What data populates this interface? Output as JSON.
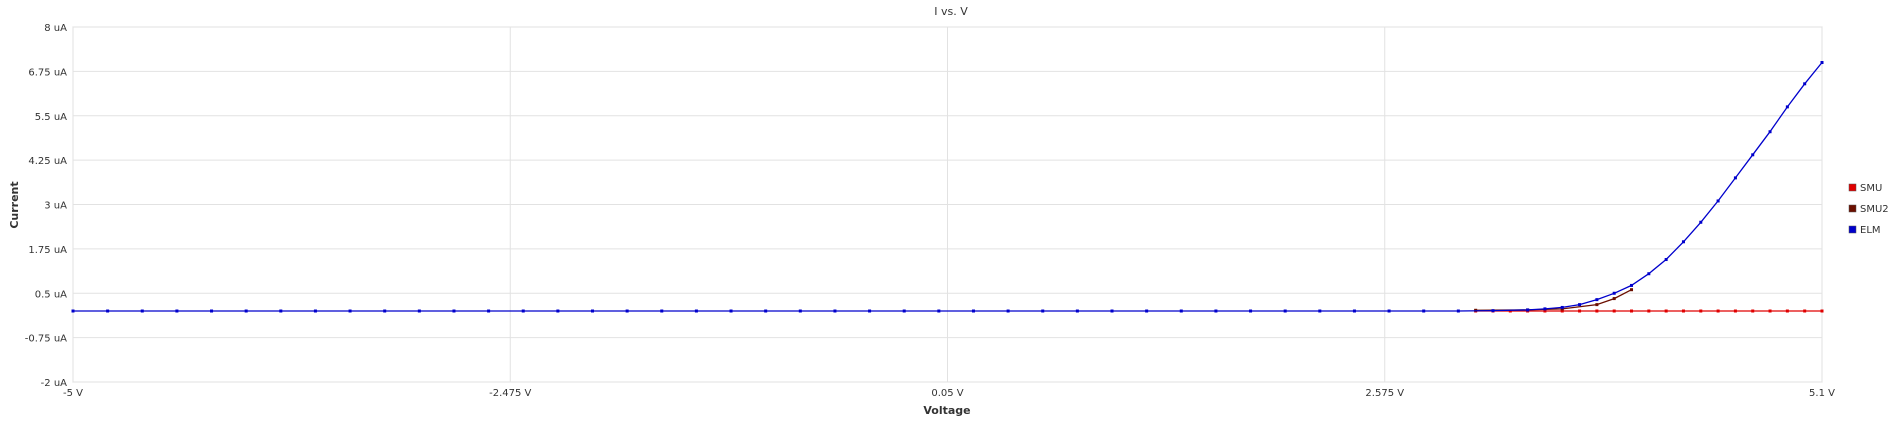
{
  "chart_data": {
    "type": "line",
    "title": "I vs. V",
    "xlabel": "Voltage",
    "ylabel": "Current",
    "xlim": [
      -5,
      5.1
    ],
    "ylim": [
      -2,
      8
    ],
    "grid": true,
    "legend_position": "right",
    "x_ticks": [
      {
        "value": -5,
        "label": "-5 V"
      },
      {
        "value": -2.475,
        "label": "-2.475 V"
      },
      {
        "value": 0.05,
        "label": "0.05 V"
      },
      {
        "value": 2.575,
        "label": "2.575 V"
      },
      {
        "value": 5.1,
        "label": "5.1 V"
      }
    ],
    "y_ticks": [
      {
        "value": 8,
        "label": "8 uA"
      },
      {
        "value": 6.75,
        "label": "6.75 uA"
      },
      {
        "value": 5.5,
        "label": "5.5 uA"
      },
      {
        "value": 4.25,
        "label": "4.25 uA"
      },
      {
        "value": 3,
        "label": "3 uA"
      },
      {
        "value": 1.75,
        "label": "1.75 uA"
      },
      {
        "value": 0.5,
        "label": "0.5 uA"
      },
      {
        "value": -0.75,
        "label": "-0.75 uA"
      },
      {
        "value": -2,
        "label": "-2 uA"
      }
    ],
    "series": [
      {
        "name": "SMU",
        "color": "#e00000",
        "x": [
          3.1,
          3.2,
          3.3,
          3.4,
          3.5,
          3.6,
          3.7,
          3.8,
          3.9,
          4.0,
          4.1,
          4.2,
          4.3,
          4.4,
          4.5,
          4.6,
          4.7,
          4.8,
          4.9,
          5.0,
          5.1
        ],
        "y": [
          0,
          0,
          0,
          0,
          0,
          0,
          0,
          0,
          0,
          0,
          0,
          0,
          0,
          0,
          0,
          0,
          0,
          0,
          0,
          0,
          0
        ]
      },
      {
        "name": "SMU2",
        "color": "#6b0f00",
        "x": [
          3.1,
          3.4,
          3.6,
          3.8,
          3.9,
          4.0
        ],
        "y": [
          0.02,
          0.03,
          0.06,
          0.18,
          0.35,
          0.6
        ]
      },
      {
        "name": "ELM",
        "color": "#0000cc",
        "x": [
          -5.0,
          -4.8,
          -4.6,
          -4.4,
          -4.2,
          -4.0,
          -3.8,
          -3.6,
          -3.4,
          -3.2,
          -3.0,
          -2.8,
          -2.6,
          -2.4,
          -2.2,
          -2.0,
          -1.8,
          -1.6,
          -1.4,
          -1.2,
          -1.0,
          -0.8,
          -0.6,
          -0.4,
          -0.2,
          0.0,
          0.2,
          0.4,
          0.6,
          0.8,
          1.0,
          1.2,
          1.4,
          1.6,
          1.8,
          2.0,
          2.2,
          2.4,
          2.6,
          2.8,
          3.0,
          3.2,
          3.4,
          3.5,
          3.6,
          3.7,
          3.8,
          3.9,
          4.0,
          4.1,
          4.2,
          4.3,
          4.4,
          4.5,
          4.6,
          4.7,
          4.8,
          4.9,
          5.0,
          5.1
        ],
        "y": [
          0,
          0,
          0,
          0,
          0,
          0,
          0,
          0,
          0,
          0,
          0,
          0,
          0,
          0,
          0,
          0,
          0,
          0,
          0,
          0,
          0,
          0,
          0,
          0,
          0,
          0,
          0,
          0,
          0,
          0,
          0,
          0,
          0,
          0,
          0,
          0,
          0,
          0,
          0,
          0,
          0,
          0.01,
          0.03,
          0.06,
          0.1,
          0.18,
          0.32,
          0.5,
          0.72,
          1.05,
          1.45,
          1.95,
          2.5,
          3.1,
          3.75,
          4.4,
          5.05,
          5.75,
          6.4,
          7.0
        ]
      }
    ]
  }
}
